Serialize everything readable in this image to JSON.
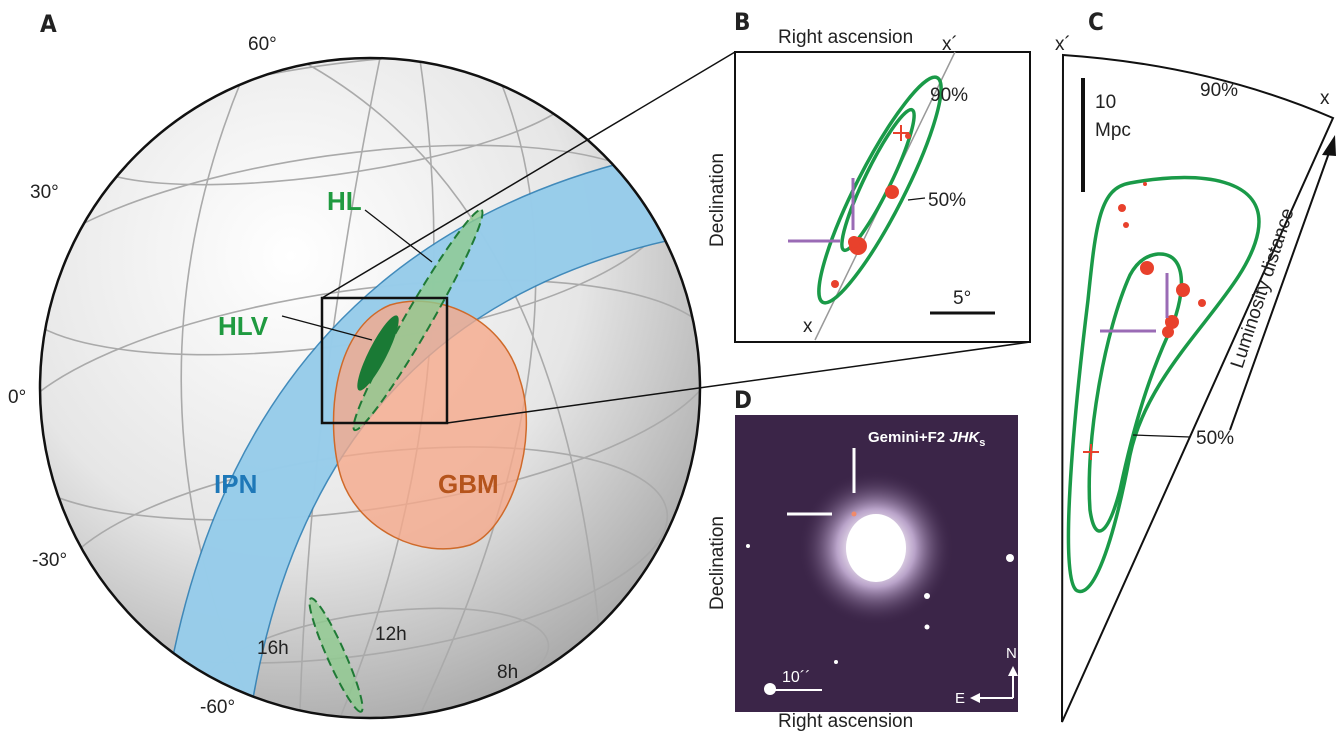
{
  "panels": [
    {
      "label": "A",
      "lat_labels": [
        "60°",
        "30°",
        "0°",
        "-30°",
        "-60°"
      ],
      "ra_labels": [
        "16h",
        "12h",
        "8h"
      ],
      "regions": [
        "HL",
        "HLV",
        "IPN",
        "GBM"
      ]
    },
    {
      "label": "B",
      "x_axis": "Right ascension",
      "y_axis": "Declination",
      "axis_ends": [
        "x´",
        "x"
      ],
      "contours": [
        "90%",
        "50%"
      ],
      "scale": "5°"
    },
    {
      "label": "C",
      "axis_ends": [
        "x´",
        "x"
      ],
      "scale": [
        "10",
        "Mpc"
      ],
      "axis": "Luminosity distance",
      "contours": [
        "90%",
        "50%"
      ]
    },
    {
      "label": "D",
      "instrument": "Gemini+F2",
      "filter": "JHK",
      "filter_subscript": "s",
      "x_axis": "Right ascension",
      "y_axis": "Declination",
      "scale": "10´´",
      "compass": [
        "N",
        "E"
      ]
    }
  ]
}
